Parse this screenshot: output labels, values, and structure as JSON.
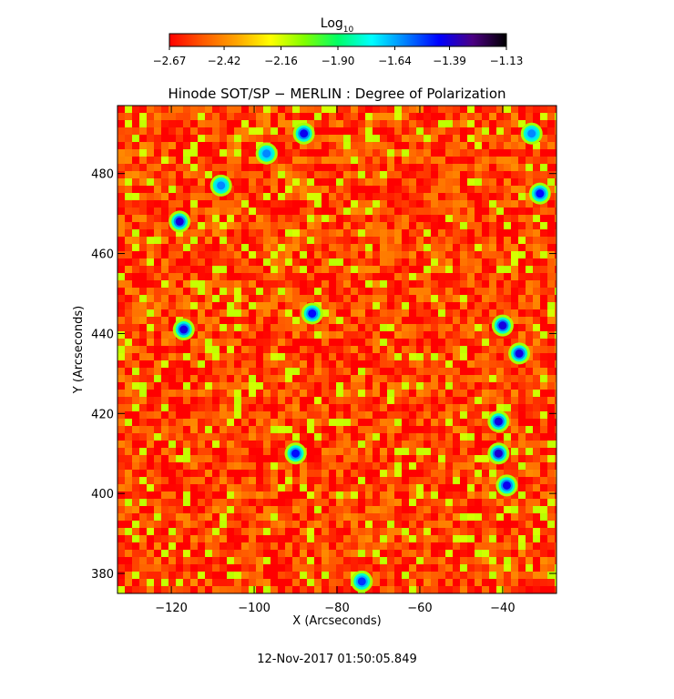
{
  "chart_data": {
    "type": "heatmap",
    "title": "Hinode SOT/SP − MERLIN : Degree of Polarization",
    "xlabel": "X (Arcseconds)",
    "ylabel": "Y (Arcseconds)",
    "xlim": [
      -133,
      -27
    ],
    "ylim": [
      375,
      497
    ],
    "xticks": [
      -120,
      -100,
      -80,
      -60,
      -40
    ],
    "xtick_labels": [
      "−120",
      "−100",
      "−80",
      "−60",
      "−40"
    ],
    "yticks": [
      380,
      400,
      420,
      440,
      460,
      480
    ],
    "ytick_labels": [
      "380",
      "400",
      "420",
      "440",
      "460",
      "480"
    ],
    "colorbar": {
      "title": "Log",
      "title_subscript": "10",
      "range": [
        -2.67,
        -1.13
      ],
      "tick_values": [
        -2.67,
        -2.42,
        -2.16,
        -1.9,
        -1.64,
        -1.39,
        -1.13
      ],
      "tick_labels": [
        "−2.67",
        "−2.42",
        "−2.16",
        "−1.90",
        "−1.64",
        "−1.39",
        "−1.13"
      ],
      "colormap": [
        "#ff0000",
        "#ff5a00",
        "#ffa500",
        "#ffff00",
        "#80ff00",
        "#00ff66",
        "#00ffff",
        "#0080ff",
        "#0000ff",
        "#4b0082",
        "#000000"
      ]
    },
    "background_value": -2.55,
    "strong_polarization_features": [
      {
        "x": -118,
        "y": 468,
        "value": -1.39
      },
      {
        "x": -117,
        "y": 441,
        "value": -1.4
      },
      {
        "x": -86,
        "y": 445,
        "value": -1.45
      },
      {
        "x": -88,
        "y": 490,
        "value": -1.42
      },
      {
        "x": -90,
        "y": 410,
        "value": -1.45
      },
      {
        "x": -41,
        "y": 410,
        "value": -1.38
      },
      {
        "x": -41,
        "y": 418,
        "value": -1.4
      },
      {
        "x": -39,
        "y": 402,
        "value": -1.42
      },
      {
        "x": -40,
        "y": 442,
        "value": -1.4
      },
      {
        "x": -36,
        "y": 435,
        "value": -1.4
      },
      {
        "x": -31,
        "y": 475,
        "value": -1.45
      },
      {
        "x": -74,
        "y": 378,
        "value": -1.5
      },
      {
        "x": -97,
        "y": 485,
        "value": -1.6
      },
      {
        "x": -33,
        "y": 490,
        "value": -1.6
      },
      {
        "x": -108,
        "y": 477,
        "value": -1.6
      }
    ]
  },
  "timestamp": "12-Nov-2017 01:50:05.849"
}
